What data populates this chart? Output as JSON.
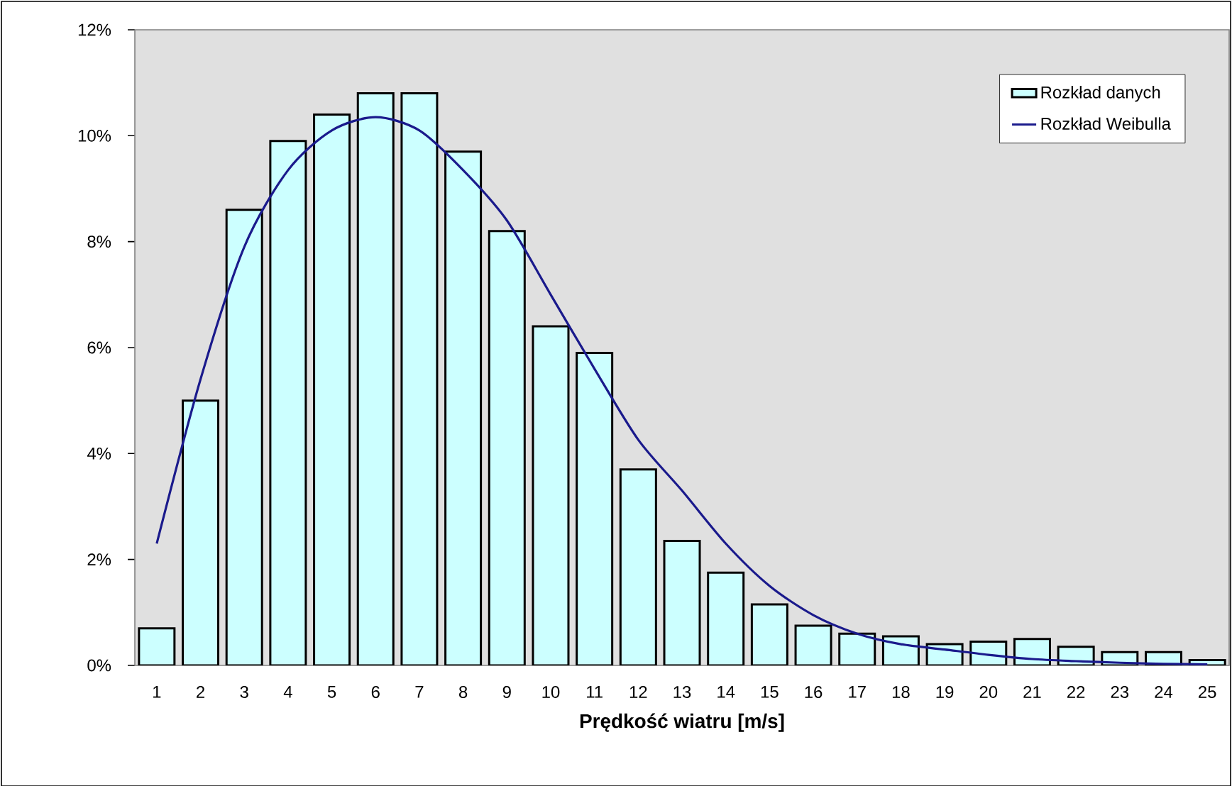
{
  "chart_data": {
    "type": "bar",
    "xlabel": "Prędkość wiatru [m/s]",
    "categories": [
      "1",
      "2",
      "3",
      "4",
      "5",
      "6",
      "7",
      "8",
      "9",
      "10",
      "11",
      "12",
      "13",
      "14",
      "15",
      "16",
      "17",
      "18",
      "19",
      "20",
      "21",
      "22",
      "23",
      "24",
      "25"
    ],
    "series": [
      {
        "name": "Rozkład danych",
        "color": "#ccffff",
        "values": [
          0.7,
          5.0,
          8.6,
          9.9,
          10.4,
          10.8,
          10.8,
          9.7,
          8.2,
          6.4,
          5.9,
          3.7,
          2.35,
          1.75,
          1.15,
          0.75,
          0.6,
          0.55,
          0.4,
          0.45,
          0.5,
          0.35,
          0.25,
          0.25,
          0.1
        ]
      },
      {
        "name": "Rozkład Weibulla",
        "type": "line",
        "color": "#1a1a8c",
        "values": [
          2.3,
          5.4,
          7.9,
          9.35,
          10.1,
          10.35,
          10.1,
          9.35,
          8.4,
          7.0,
          5.6,
          4.26,
          3.3,
          2.3,
          1.5,
          0.95,
          0.6,
          0.4,
          0.3,
          0.2,
          0.12,
          0.08,
          0.05,
          0.03,
          0.02
        ]
      }
    ],
    "ylim": [
      0,
      12
    ],
    "yticks": [
      {
        "value": 0,
        "label": "0%"
      },
      {
        "value": 2,
        "label": "2%"
      },
      {
        "value": 4,
        "label": "4%"
      },
      {
        "value": 6,
        "label": "6%"
      },
      {
        "value": 8,
        "label": "8%"
      },
      {
        "value": 10,
        "label": "10%"
      },
      {
        "value": 12,
        "label": "12%"
      }
    ],
    "legend": "top right",
    "grid": false
  }
}
